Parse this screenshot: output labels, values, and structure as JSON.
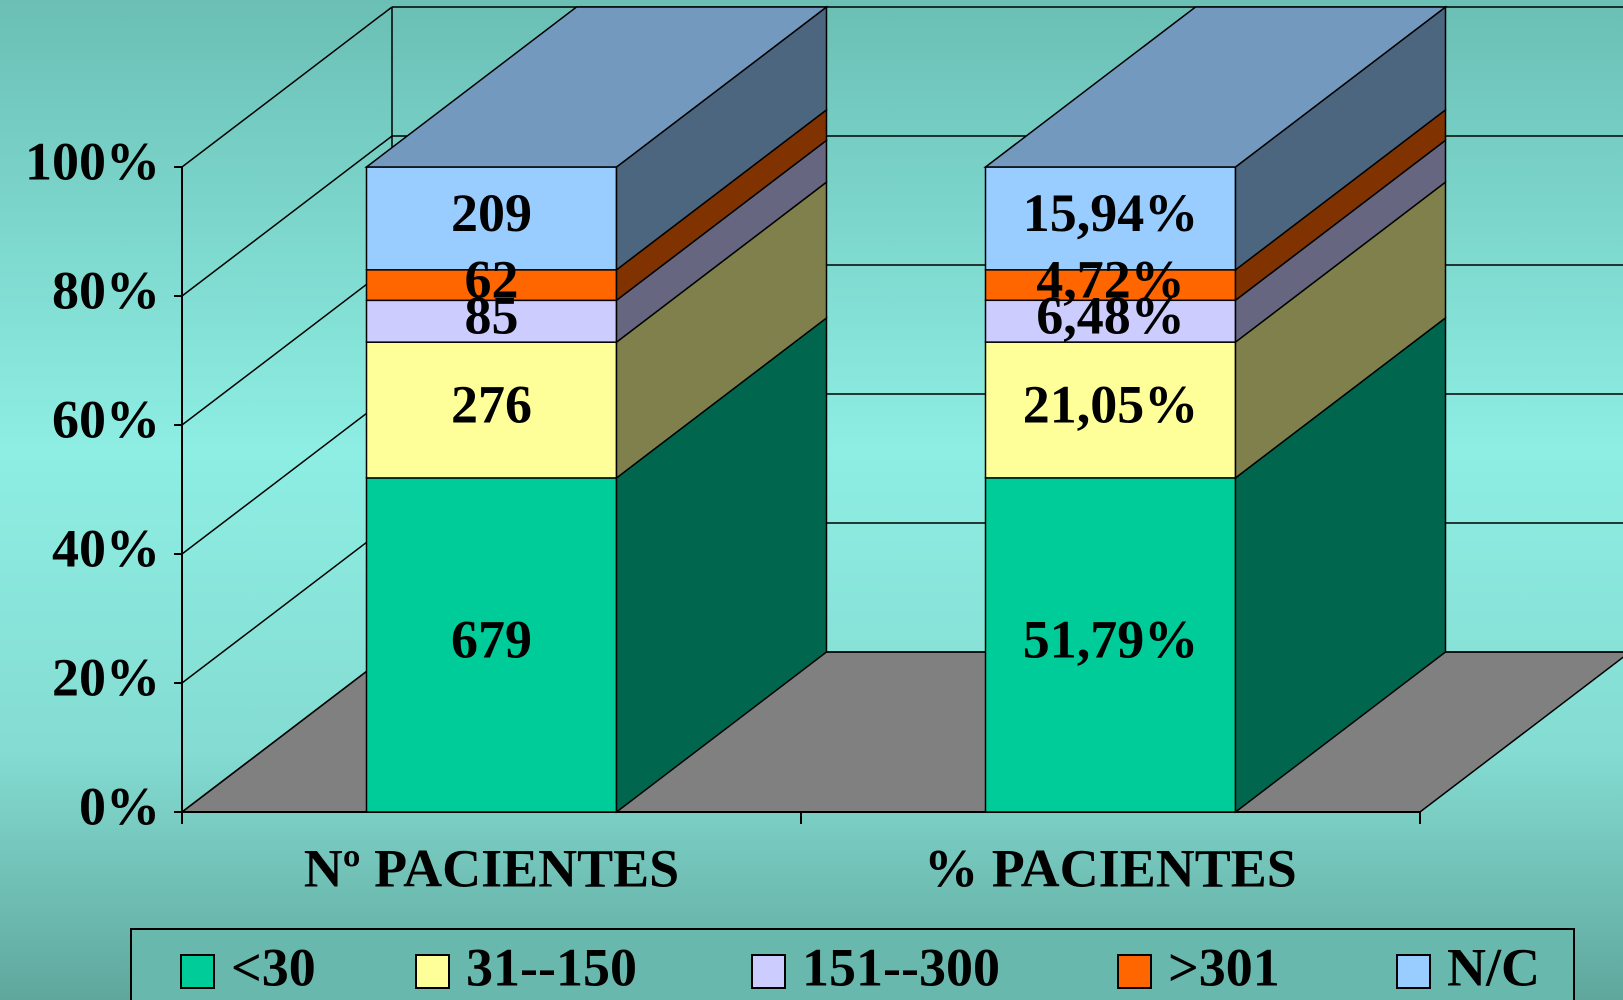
{
  "chart_data": {
    "type": "bar",
    "stacking": "percent",
    "three_d": true,
    "categories": [
      "Nº PACIENTES",
      "% PACIENTES"
    ],
    "series": [
      {
        "name": "<30",
        "color": "#00cc99",
        "values": [
          679,
          51.79
        ],
        "value_labels": [
          "679",
          "51,79%"
        ]
      },
      {
        "name": "31--150",
        "color": "#ffff99",
        "values": [
          276,
          21.05
        ],
        "value_labels": [
          "276",
          "21,05%"
        ]
      },
      {
        "name": "151--300",
        "color": "#ccccff",
        "values": [
          85,
          6.48
        ],
        "value_labels": [
          "85",
          "6,48%"
        ]
      },
      {
        "name": ">301",
        "color": "#ff6600",
        "values": [
          62,
          4.72
        ],
        "value_labels": [
          "62",
          "4,72%"
        ]
      },
      {
        "name": "N/C",
        "color": "#99ccff",
        "values": [
          209,
          15.94
        ],
        "value_labels": [
          "209",
          "15,94%"
        ]
      }
    ],
    "ylim": [
      0,
      100
    ],
    "yticks": [
      {
        "value": 0,
        "label": "0%"
      },
      {
        "value": 20,
        "label": "20%"
      },
      {
        "value": 40,
        "label": "40%"
      },
      {
        "value": 60,
        "label": "60%"
      },
      {
        "value": 80,
        "label": "80%"
      },
      {
        "value": 100,
        "label": "100%"
      }
    ],
    "grid": true,
    "floor_color": "#808080",
    "legend": "bottom"
  }
}
